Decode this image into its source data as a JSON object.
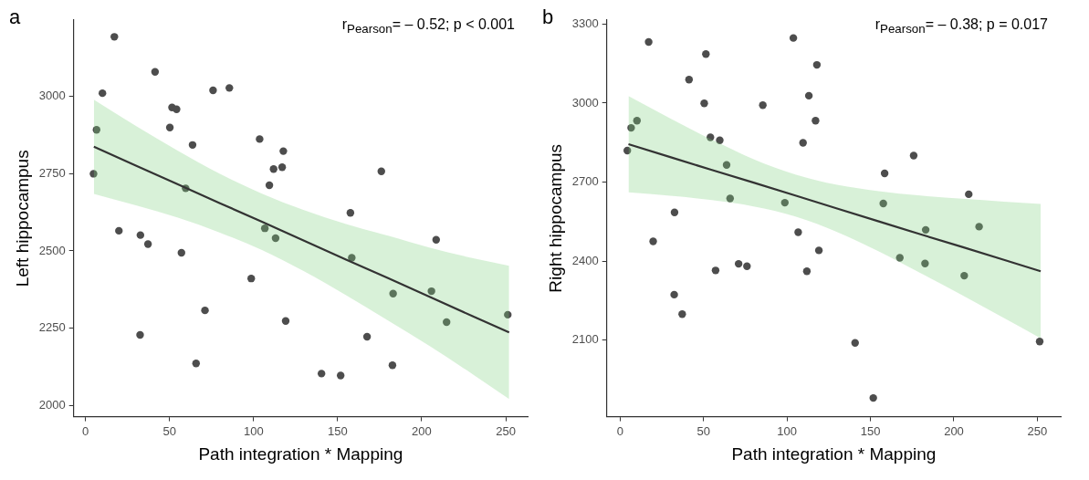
{
  "chart_data": [
    {
      "type": "scatter",
      "title": "a",
      "xlabel": "Path integration * Mapping",
      "ylabel": "Left hippocampus",
      "xlim": [
        -7,
        263
      ],
      "xticks": [
        0,
        50,
        100,
        150,
        200,
        250
      ],
      "ylim": [
        1965,
        3245
      ],
      "yticks": [
        2000,
        2250,
        2500,
        2750,
        3000
      ],
      "grid": false,
      "legend": false,
      "annotations": [
        "r$_{Pearson}$= – 0.52; p < 0.001"
      ],
      "series": [
        {
          "marker": "circle",
          "color": "#4d4d4d",
          "x": [
            4.8,
            6.6,
            10.1,
            17.2,
            19.9,
            32.5,
            32.7,
            37.2,
            41.4,
            50.2,
            51.5,
            54.2,
            57.1,
            59.6,
            63.7,
            65.8,
            71.1,
            75.9,
            85.6,
            98.6,
            103.6,
            106.7,
            109.4,
            111.9,
            113.1,
            117.0,
            117.7,
            119.1,
            140.4,
            151.8,
            157.6,
            158.4,
            167.5,
            176.0,
            182.6,
            183.0,
            205.8,
            208.6,
            214.8,
            251.2
          ],
          "values": [
            2749,
            2891,
            3009,
            3191,
            2565,
            2229,
            2551,
            2522,
            3078,
            2898,
            2963,
            2957,
            2494,
            2702,
            2842,
            2137,
            2308,
            3018,
            3026,
            2411,
            2861,
            2573,
            2712,
            2764,
            2541,
            2770,
            2822,
            2274,
            2104,
            2098,
            2623,
            2478,
            2223,
            2757,
            2131,
            2362,
            2370,
            2536,
            2270,
            2294
          ]
        },
        {
          "type": "line",
          "marker": "none",
          "color": "#333333",
          "x": [
            5,
            30,
            55,
            80,
            105,
            130,
            155,
            180,
            205,
            230,
            252
          ],
          "values": [
            2836,
            2775,
            2715,
            2654,
            2594,
            2533,
            2472,
            2412,
            2351,
            2290,
            2237
          ],
          "lower": [
            2684,
            2647,
            2607,
            2559,
            2503,
            2434,
            2357,
            2275,
            2192,
            2103,
            2022
          ],
          "upper": [
            2988,
            2903,
            2823,
            2749,
            2685,
            2632,
            2587,
            2549,
            2510,
            2477,
            2452
          ]
        }
      ]
    },
    {
      "type": "scatter",
      "title": "b",
      "xlabel": "Path integration * Mapping",
      "ylabel": "Right hippocampus",
      "xlim": [
        -8,
        264
      ],
      "xticks": [
        0,
        50,
        100,
        150,
        200,
        250
      ],
      "ylim": [
        1810,
        3315
      ],
      "yticks": [
        2100,
        2400,
        2700,
        3000,
        3300
      ],
      "grid": false,
      "legend": false,
      "annotations": [
        "r$_{Pearson}$= – 0.38; p = 0.017"
      ],
      "series": [
        {
          "marker": "circle",
          "color": "#4d4d4d",
          "x": [
            4.3,
            6.6,
            10.1,
            17.1,
            19.8,
            32.6,
            32.4,
            37.2,
            41.3,
            50.4,
            51.4,
            54.1,
            57.2,
            59.7,
            63.8,
            65.9,
            71.0,
            76.0,
            85.5,
            98.7,
            103.8,
            106.7,
            109.6,
            111.9,
            113.1,
            117.1,
            117.9,
            119.1,
            140.8,
            151.7,
            157.7,
            158.5,
            167.6,
            175.9,
            183.1,
            182.7,
            206.2,
            208.9,
            215.1,
            251.4
          ],
          "values": [
            2820,
            2906,
            2933,
            3232,
            2475,
            2585,
            2273,
            2199,
            3089,
            2999,
            3186,
            2870,
            2365,
            2859,
            2765,
            2638,
            2390,
            2381,
            2992,
            2622,
            3247,
            2510,
            2849,
            2362,
            3028,
            2933,
            3145,
            2441,
            2090,
            1881,
            2619,
            2733,
            2413,
            2801,
            2519,
            2391,
            2345,
            2654,
            2531,
            2095
          ]
        },
        {
          "type": "line",
          "marker": "none",
          "color": "#333333",
          "x": [
            5,
            30,
            55,
            80,
            105,
            130,
            155,
            180,
            205,
            230,
            252
          ],
          "values": [
            2844,
            2795,
            2746,
            2698,
            2649,
            2600,
            2551,
            2502,
            2454,
            2405,
            2362
          ],
          "lower": [
            2661,
            2648,
            2632,
            2608,
            2570,
            2511,
            2437,
            2355,
            2271,
            2184,
            2107
          ],
          "upper": [
            3027,
            2942,
            2861,
            2787,
            2729,
            2690,
            2666,
            2649,
            2637,
            2626,
            2617
          ]
        }
      ]
    }
  ]
}
